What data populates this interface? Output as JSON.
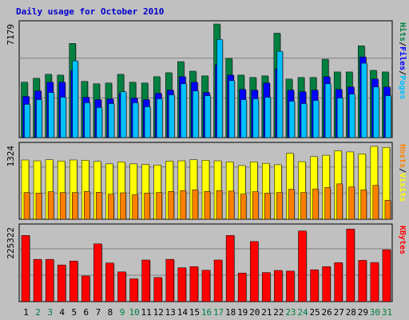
{
  "colors": {
    "hits": "#008040",
    "files": "#0000ff",
    "pages": "#00c0ff",
    "visits": "#ffff00",
    "hosts": "#ff8000",
    "kbytes": "#ff0000",
    "title": "#0000cc",
    "weekend_label": "#008040",
    "weekday_label": "#000000",
    "separator": "#000000"
  },
  "chart_data": {
    "type": "bar",
    "title": "Daily usage for October 2010",
    "categories": [
      "1",
      "2",
      "3",
      "4",
      "5",
      "6",
      "7",
      "8",
      "9",
      "10",
      "11",
      "12",
      "13",
      "14",
      "15",
      "16",
      "17",
      "18",
      "19",
      "20",
      "21",
      "22",
      "23",
      "24",
      "25",
      "26",
      "27",
      "28",
      "29",
      "30",
      "31"
    ],
    "weekend_days": [
      "2",
      "3",
      "9",
      "10",
      "16",
      "17",
      "23",
      "24",
      "30",
      "31"
    ],
    "panels": [
      {
        "id": "top",
        "side_label": [
          "Hits",
          "/",
          "Files",
          "/",
          "Pages"
        ],
        "side_label_colors": [
          "#008040",
          "#000000",
          "#0000ff",
          "#000000",
          "#00c0ff"
        ],
        "axis_max_label": "7179",
        "ylim": [
          0,
          7179
        ],
        "series": [
          {
            "name": "Hits",
            "values": [
              3500,
              3750,
              4000,
              3950,
              5950,
              3550,
              3400,
              3450,
              4000,
              3500,
              3450,
              3850,
              4100,
              4800,
              4200,
              3900,
              7179,
              5000,
              3950,
              3800,
              3900,
              6600,
              3700,
              3800,
              3800,
              4950,
              4150,
              4150,
              5800,
              4250,
              4150
            ]
          },
          {
            "name": "Files",
            "values": [
              2600,
              2950,
              3500,
              3500,
              4250,
              2550,
              2400,
              2450,
              2800,
              2500,
              2400,
              2800,
              3000,
              3850,
              3500,
              2850,
              4600,
              3950,
              3050,
              3000,
              3450,
              4350,
              3000,
              2900,
              3000,
              3850,
              3050,
              3200,
              5100,
              3700,
              3200
            ]
          },
          {
            "name": "Pages",
            "values": [
              2100,
              2400,
              2850,
              2550,
              4850,
              2200,
              1900,
              2150,
              2900,
              2200,
              1950,
              2450,
              2700,
              3400,
              2950,
              2650,
              6200,
              3600,
              2400,
              2450,
              2550,
              5450,
              2300,
              2150,
              2350,
              3400,
              2500,
              2750,
              4700,
              3200,
              2650
            ]
          }
        ]
      },
      {
        "id": "middle",
        "side_label": [
          "Hosts",
          "/",
          "Visits"
        ],
        "side_label_colors": [
          "#ff8000",
          "#000000",
          "#ffff00"
        ],
        "axis_max_label": "1324",
        "ylim": [
          0,
          1324
        ],
        "series": [
          {
            "name": "Visits",
            "values": [
              1065,
              1050,
              1070,
              1045,
              1065,
              1060,
              1040,
              995,
              1030,
              995,
              985,
              975,
              1045,
              1050,
              1070,
              1060,
              1050,
              1030,
              965,
              1030,
              1005,
              980,
              1185,
              1035,
              1125,
              1150,
              1230,
              1210,
              1175,
              1310,
              1290
            ]
          },
          {
            "name": "Hosts",
            "values": [
              480,
              470,
              495,
              480,
              480,
              500,
              485,
              450,
              475,
              440,
              470,
              480,
              500,
              515,
              530,
              500,
              515,
              505,
              450,
              495,
              470,
              480,
              540,
              480,
              545,
              570,
              635,
              580,
              530,
              610,
              340
            ]
          }
        ]
      },
      {
        "id": "bottom",
        "side_label": [
          "KBytes"
        ],
        "side_label_colors": [
          "#ff0000"
        ],
        "axis_max_label": "225322",
        "ylim": [
          0,
          225322
        ],
        "series": [
          {
            "name": "KBytes",
            "values": [
              200500,
              128000,
              128000,
              111000,
              123000,
              77500,
              175000,
              117000,
              90000,
              69000,
              126000,
              73000,
              128000,
              102500,
              106000,
              95000,
              126000,
              200500,
              86500,
              182000,
              88000,
              94500,
              92500,
              214000,
              96500,
              106000,
              118000,
              220000,
              125000,
              118500,
              157000
            ]
          }
        ]
      }
    ]
  }
}
